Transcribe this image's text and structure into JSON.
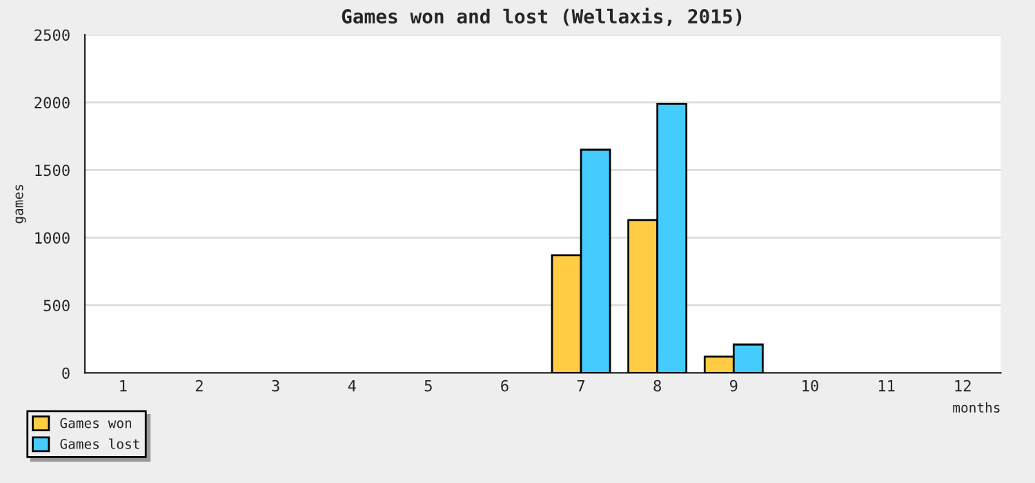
{
  "chart_data": {
    "type": "bar",
    "title": "Games won and lost (Wellaxis, 2015)",
    "xlabel": "months",
    "ylabel": "games",
    "categories": [
      "1",
      "2",
      "3",
      "4",
      "5",
      "6",
      "7",
      "8",
      "9",
      "10",
      "11",
      "12"
    ],
    "series": [
      {
        "name": "Games won",
        "color": "#ffcc44",
        "values": [
          0,
          0,
          0,
          0,
          0,
          0,
          870,
          1130,
          120,
          0,
          0,
          0
        ]
      },
      {
        "name": "Games lost",
        "color": "#44ccff",
        "values": [
          0,
          0,
          0,
          0,
          0,
          0,
          1650,
          1990,
          210,
          0,
          0,
          0
        ]
      }
    ],
    "ylim": [
      0,
      2500
    ],
    "yticks": [
      0,
      500,
      1000,
      1500,
      2000,
      2500
    ],
    "grid": "y",
    "legend": "bottom left"
  }
}
